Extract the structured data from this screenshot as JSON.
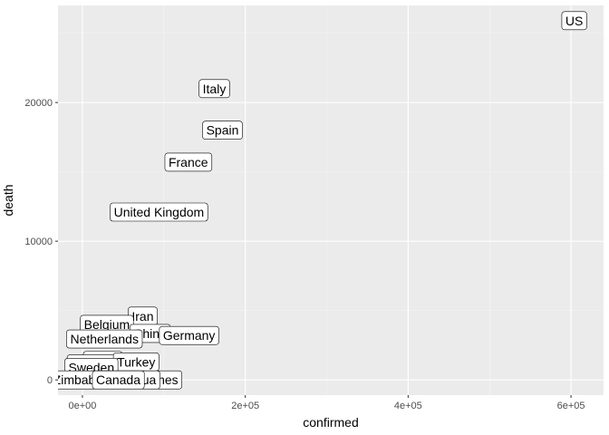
{
  "chart_data": {
    "type": "scatter",
    "geom": "label",
    "xlabel": "confirmed",
    "ylabel": "death",
    "xlim": [
      -30000,
      640000
    ],
    "ylim": [
      -1100,
      27000
    ],
    "x_ticks": [
      0,
      200000,
      400000,
      600000
    ],
    "x_tick_labels": [
      "0e+00",
      "2e+05",
      "4e+05",
      "6e+05"
    ],
    "y_ticks": [
      0,
      10000,
      20000
    ],
    "y_tick_labels": [
      "0",
      "10000",
      "20000"
    ],
    "grid": true,
    "legend": "none",
    "points": [
      {
        "label": "US",
        "x": 604000,
        "y": 25900
      },
      {
        "label": "Italy",
        "x": 162000,
        "y": 21000
      },
      {
        "label": "Spain",
        "x": 172000,
        "y": 18000
      },
      {
        "label": "France",
        "x": 130000,
        "y": 15700
      },
      {
        "label": "United Kingdom",
        "x": 94000,
        "y": 12100
      },
      {
        "label": "Iran",
        "x": 74000,
        "y": 4600
      },
      {
        "label": "Belgium",
        "x": 30000,
        "y": 4000
      },
      {
        "label": "China",
        "x": 83000,
        "y": 3350
      },
      {
        "label": "Germany",
        "x": 131000,
        "y": 3200
      },
      {
        "label": "Netherlands",
        "x": 27000,
        "y": 2950
      },
      {
        "label": "Brazil",
        "x": 25000,
        "y": 1400
      },
      {
        "label": "Switzerland",
        "x": 26000,
        "y": 1150
      },
      {
        "label": "Turkey",
        "x": 66000,
        "y": 1300
      },
      {
        "label": "Sweden",
        "x": 11000,
        "y": 900
      },
      {
        "label": "Philippines",
        "x": 80000,
        "y": 0
      },
      {
        "label": "Zimbabwe",
        "x": 0,
        "y": 0
      },
      {
        "label": "Nicaragua",
        "x": 55000,
        "y": 0
      },
      {
        "label": "Canada",
        "x": 44000,
        "y": 0
      }
    ],
    "colors": {
      "panel_bg": "#ebebeb",
      "grid_major": "#ffffff",
      "grid_minor": "#f5f5f5",
      "label_fill": "#ffffff",
      "label_border": "#000000",
      "tick_text": "#4d4d4d"
    }
  }
}
